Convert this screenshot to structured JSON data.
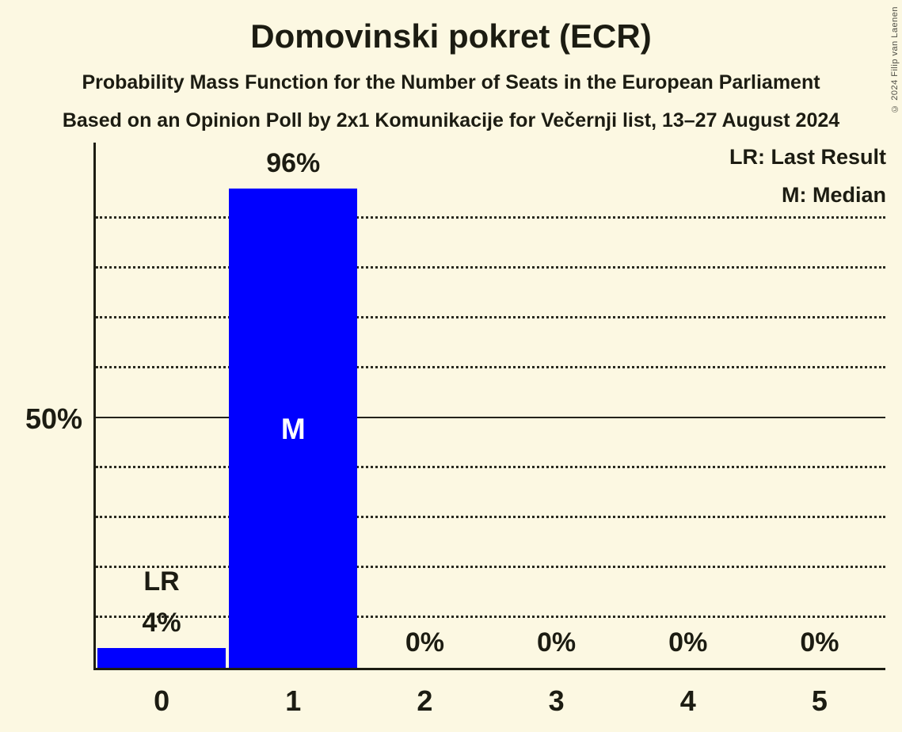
{
  "title": "Domovinski pokret (ECR)",
  "subtitle1": "Probability Mass Function for the Number of Seats in the European Parliament",
  "subtitle2": "Based on an Opinion Poll by 2x1 Komunikacije for Večernji list, 13–27 August 2024",
  "copyright": "© 2024 Filip van Laenen",
  "legend": {
    "lr": "LR: Last Result",
    "m": "M: Median"
  },
  "y_axis": {
    "tick_label": "50%",
    "tick_value": 50
  },
  "chart_data": {
    "type": "bar",
    "title": "Domovinski pokret (ECR)",
    "categories": [
      "0",
      "1",
      "2",
      "3",
      "4",
      "5"
    ],
    "values": [
      4,
      96,
      0,
      0,
      0,
      0
    ],
    "bar_labels": [
      "4%",
      "96%",
      "0%",
      "0%",
      "0%",
      "0%"
    ],
    "xlabel": "",
    "ylabel": "",
    "ylim": [
      0,
      105
    ],
    "gridlines_pct": [
      10,
      20,
      30,
      40,
      50,
      60,
      70,
      80,
      90
    ],
    "solid_gridline_pct": 50,
    "grid_style": "dotted",
    "legend_position": "top-right",
    "annotations": [
      {
        "category": "0",
        "label": "LR"
      },
      {
        "category": "1",
        "label": "M"
      }
    ],
    "colors": {
      "bar": "#0000FF",
      "background": "#FCF8E2",
      "text": "#1C1C12"
    }
  }
}
